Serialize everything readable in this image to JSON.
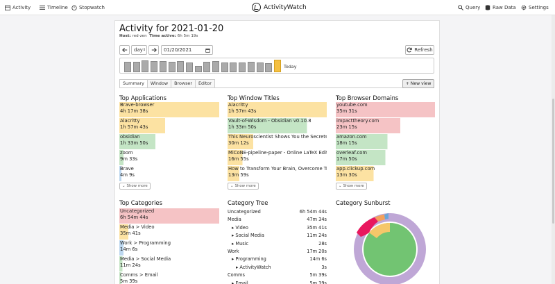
{
  "nav": {
    "activity": "Activity",
    "timeline": "Timeline",
    "stopwatch": "Stopwatch",
    "brand": "ActivityWatch",
    "query": "Query",
    "raw_data": "Raw Data",
    "settings": "Settings"
  },
  "header": {
    "title": "Activity for 2021-01-20",
    "host_label": "Host:",
    "host": "red-zen",
    "time_active_label": "Time active:",
    "time_active": "6h 5m 19s"
  },
  "controls": {
    "period": "day",
    "date": "01/20/2021",
    "refresh_label": "Refresh"
  },
  "barchart": {
    "values": [
      0.78,
      0.78,
      0.92,
      0.86,
      0.86,
      0.78,
      0.86,
      0.72,
      0.5,
      0.78,
      0.86,
      0.72,
      0.72,
      0.72,
      0.78,
      0.72,
      0.7,
      0.96
    ],
    "today_label": "Today"
  },
  "tabs": [
    "Summary",
    "Window",
    "Browser",
    "Editor"
  ],
  "new_view_label": "+ New view",
  "top_applications": {
    "title": "Top Applications",
    "items": [
      {
        "name": "Brave-browser",
        "time": "4h 17m 38s",
        "fraction": 1.0,
        "color": "#fce2a2"
      },
      {
        "name": "Alacritty",
        "time": "1h 57m 43s",
        "fraction": 0.46,
        "color": "#fce2a2"
      },
      {
        "name": "obsidian",
        "time": "1h 33m 50s",
        "fraction": 0.36,
        "color": "#c4e5c5"
      },
      {
        "name": "zoom",
        "time": "9m 33s",
        "fraction": 0.04,
        "color": "#c4e5c5"
      },
      {
        "name": "Brave",
        "time": "4m 9s",
        "fraction": 0.02,
        "color": "#bcd7ef"
      }
    ],
    "show_more": "Show more"
  },
  "top_window_titles": {
    "title": "Top Window Titles",
    "items": [
      {
        "name": "Alacritty",
        "time": "1h 57m 43s",
        "fraction": 1.0,
        "color": "#fce2a2"
      },
      {
        "name": "Vault-of-Wisdom - Obsidian v0.10.8",
        "time": "1h 33m 50s",
        "fraction": 0.8,
        "color": "#c4e5c5"
      },
      {
        "name": "This Neuroscientist Shows You the Secrets to",
        "time": "30m 12s",
        "fraction": 0.26,
        "color": "#fce2a2"
      },
      {
        "name": "MiCoNE-pipeline-paper - Online LaTeX Editor",
        "time": "16m 55s",
        "fraction": 0.15,
        "color": "#fce2a2"
      },
      {
        "name": "How to Transform Your Brain, Overcome Trau",
        "time": "13m 59s",
        "fraction": 0.12,
        "color": "#fce2a2"
      }
    ],
    "show_more": "Show more"
  },
  "top_browser_domains": {
    "title": "Top Browser Domains",
    "items": [
      {
        "name": "youtube.com",
        "time": "35m 31s",
        "fraction": 1.0,
        "color": "#f5c3c5"
      },
      {
        "name": "impacttheory.com",
        "time": "23m 15s",
        "fraction": 0.65,
        "color": "#f5c3c5"
      },
      {
        "name": "amazon.com",
        "time": "18m 15s",
        "fraction": 0.52,
        "color": "#c4e5c5"
      },
      {
        "name": "overleaf.com",
        "time": "17m 50s",
        "fraction": 0.5,
        "color": "#c4e5c5"
      },
      {
        "name": "app.clickup.com",
        "time": "13m 30s",
        "fraction": 0.38,
        "color": "#fce2a2"
      }
    ],
    "show_more": "Show more"
  },
  "top_categories": {
    "title": "Top Categories",
    "items": [
      {
        "name": "Uncategorized",
        "time": "6h 54m 44s",
        "fraction": 1.0,
        "color": "#f5c3c5"
      },
      {
        "name": "Media > Video",
        "time": "35m 41s",
        "fraction": 0.09,
        "color": "#fce2a2"
      },
      {
        "name": "Work > Programming",
        "time": "14m 6s",
        "fraction": 0.04,
        "color": "#bcd7ef"
      },
      {
        "name": "Media > Social Media",
        "time": "11m 24s",
        "fraction": 0.03,
        "color": "#c4e5c5"
      },
      {
        "name": "Comms > Email",
        "time": "5m 39s",
        "fraction": 0.02,
        "color": "#c4e5c5"
      }
    ]
  },
  "category_tree": {
    "title": "Category Tree",
    "rows": [
      {
        "label": "Uncategorized",
        "time": "6h 54m 44s",
        "indent": 0,
        "caret": ""
      },
      {
        "label": "Media",
        "time": "47m 34s",
        "indent": 0,
        "caret": ""
      },
      {
        "label": "Video",
        "time": "35m 41s",
        "indent": 1,
        "caret": "▸"
      },
      {
        "label": "Social Media",
        "time": "11m 24s",
        "indent": 1,
        "caret": "▸"
      },
      {
        "label": "Music",
        "time": "28s",
        "indent": 1,
        "caret": "▸"
      },
      {
        "label": "Work",
        "time": "17m 20s",
        "indent": 0,
        "caret": ""
      },
      {
        "label": "Programming",
        "time": "14m 6s",
        "indent": 1,
        "caret": "▸"
      },
      {
        "label": "ActivityWatch",
        "time": "3s",
        "indent": 2,
        "caret": "▸"
      },
      {
        "label": "Comms",
        "time": "5m 39s",
        "indent": 0,
        "caret": ""
      },
      {
        "label": "Email",
        "time": "5m 39s",
        "indent": 1,
        "caret": "▸"
      }
    ]
  },
  "category_sunburst": {
    "title": "Category Sunburst",
    "inner_color": "#72c472",
    "outer_color": "#bfa7d6",
    "top_colors": [
      "#e8185e",
      "#f3a15c",
      "#f6c76a",
      "#bcdbe8",
      "#6aa6d8"
    ]
  }
}
